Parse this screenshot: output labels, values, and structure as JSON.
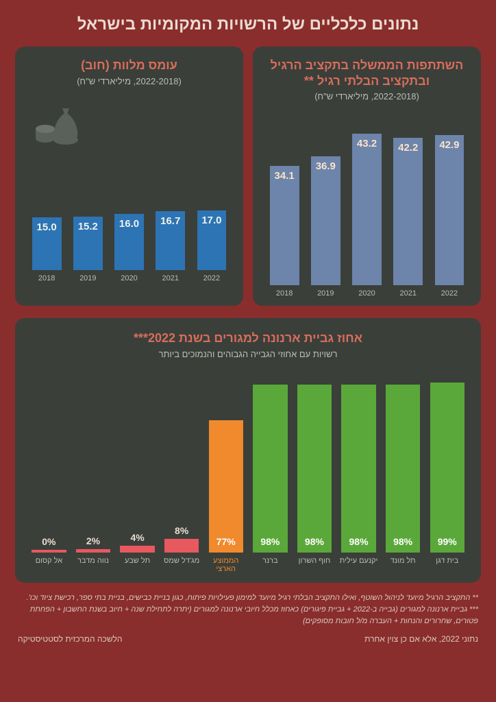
{
  "page_title": "נתונים כלכליים של הרשויות המקומיות בישראל",
  "gov_chart": {
    "title": "השתתפות הממשלה בתקציב הרגיל ובתקציב הבלתי רגיל **",
    "subtitle": "(2022-2018, מיליארדי ש\"ח)",
    "years": [
      "2018",
      "2019",
      "2020",
      "2021",
      "2022"
    ],
    "values": [
      34.1,
      36.9,
      43.2,
      42.2,
      42.9
    ],
    "max": 47,
    "bar_color": "#6d84ab",
    "value_color": "#fbe2c8"
  },
  "loan_chart": {
    "title": "עומס מלוות (חוב)",
    "subtitle": "(2022-2018, מיליארדי ש\"ח)",
    "years": [
      "2018",
      "2019",
      "2020",
      "2021",
      "2022"
    ],
    "values": [
      15.0,
      15.2,
      16.0,
      16.7,
      17.0
    ],
    "max": 47,
    "bar_color": "#2d74b5"
  },
  "collection_chart": {
    "title": "אחוז גביית ארנונה למגורים בשנת 2022***",
    "subtitle": "רשויות עם אחוזי הגבייה הגבוהים והנמוכים ביותר",
    "max": 100,
    "items": [
      {
        "label": "בית דגן",
        "value": 99,
        "color": "#5aa83a",
        "low": false
      },
      {
        "label": "תל מונד",
        "value": 98,
        "color": "#5aa83a",
        "low": false
      },
      {
        "label": "יקנעם עילית",
        "value": 98,
        "color": "#5aa83a",
        "low": false
      },
      {
        "label": "חוף השרון",
        "value": 98,
        "color": "#5aa83a",
        "low": false
      },
      {
        "label": "ברנר",
        "value": 98,
        "color": "#5aa83a",
        "low": false
      },
      {
        "label": "הממוצע הארצי",
        "value": 77,
        "color": "#f08a2c",
        "low": false,
        "label_color": "#f08a2c"
      },
      {
        "label": "מג'דל שמס",
        "value": 8,
        "color": "#e8585f",
        "low": true
      },
      {
        "label": "תל שבע",
        "value": 4,
        "color": "#e8585f",
        "low": true
      },
      {
        "label": "נווה מדבר",
        "value": 2,
        "color": "#e8585f",
        "low": true
      },
      {
        "label": "אל קסום",
        "value": 0,
        "color": "#e8585f",
        "low": true
      }
    ]
  },
  "footnotes": {
    "f1": "** התקציב הרגיל מיועד לניהול השוטף, ואילו התקציב הבלתי רגיל מיועד למימון פעילויות פיתוח, כגון בניית כבישים, בניית בתי ספר, רכישת ציוד וכו'.",
    "f2": "*** גביית ארנונה למגורים (גבייה ב-2022 + גביית פיגורים) כאחוז מכלל חיובי ארנונה למגורים (יתרה לתחילת שנה + חיוב בשנת החשבון + הפחתת פטורים, שחרורים והנחות + העברה מ/ל חובות מסופקים)"
  },
  "source_right": "נתוני 2022, אלא אם כן צוין אחרת",
  "source_left": "הלשכה המרכזית לסטטיסטיקה"
}
